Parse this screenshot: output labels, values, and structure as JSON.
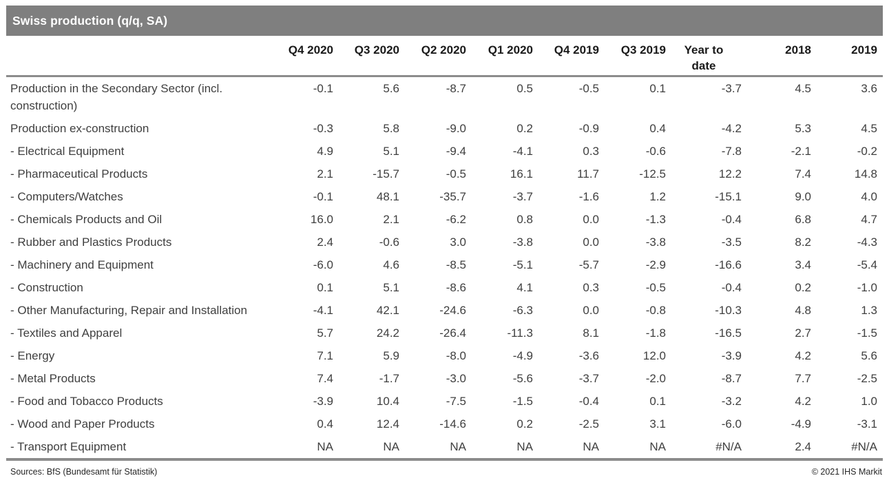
{
  "title": "Swiss production (q/q, SA)",
  "footer": {
    "sources": "Sources: BfS (Bundesamt für Statistik)",
    "copyright": "© 2021 IHS Markit"
  },
  "colors": {
    "title_bar_bg": "#7f7f7f",
    "title_text": "#ffffff",
    "rule_grey": "#8c8c8c",
    "column_header_text": "#1a1a1a",
    "body_text": "#3f3f3f"
  },
  "chart_data": {
    "type": "table",
    "title": "Swiss production (q/q, SA)",
    "columns": [
      "Q4 2020",
      "Q3 2020",
      "Q2 2020",
      "Q1 2020",
      "Q4 2019",
      "Q3 2019",
      "Year to date",
      "2018",
      "2019"
    ],
    "rows": [
      {
        "label": "Production in the Secondary Sector (incl. construction)",
        "values": [
          "-0.1",
          "5.6",
          "-8.7",
          "0.5",
          "-0.5",
          "0.1",
          "-3.7",
          "4.5",
          "3.6"
        ]
      },
      {
        "label": "Production ex-construction",
        "values": [
          "-0.3",
          "5.8",
          "-9.0",
          "0.2",
          "-0.9",
          "0.4",
          "-4.2",
          "5.3",
          "4.5"
        ]
      },
      {
        "label": "- Electrical Equipment",
        "values": [
          "4.9",
          "5.1",
          "-9.4",
          "-4.1",
          "0.3",
          "-0.6",
          "-7.8",
          "-2.1",
          "-0.2"
        ]
      },
      {
        "label": "- Pharmaceutical Products",
        "values": [
          "2.1",
          "-15.7",
          "-0.5",
          "16.1",
          "11.7",
          "-12.5",
          "12.2",
          "7.4",
          "14.8"
        ]
      },
      {
        "label": "- Computers/Watches",
        "values": [
          "-0.1",
          "48.1",
          "-35.7",
          "-3.7",
          "-1.6",
          "1.2",
          "-15.1",
          "9.0",
          "4.0"
        ]
      },
      {
        "label": "- Chemicals Products and Oil",
        "values": [
          "16.0",
          "2.1",
          "-6.2",
          "0.8",
          "0.0",
          "-1.3",
          "-0.4",
          "6.8",
          "4.7"
        ]
      },
      {
        "label": "- Rubber and Plastics Products",
        "values": [
          "2.4",
          "-0.6",
          "3.0",
          "-3.8",
          "0.0",
          "-3.8",
          "-3.5",
          "8.2",
          "-4.3"
        ]
      },
      {
        "label": "- Machinery and Equipment",
        "values": [
          "-6.0",
          "4.6",
          "-8.5",
          "-5.1",
          "-5.7",
          "-2.9",
          "-16.6",
          "3.4",
          "-5.4"
        ]
      },
      {
        "label": "- Construction",
        "values": [
          "0.1",
          "5.1",
          "-8.6",
          "4.1",
          "0.3",
          "-0.5",
          "-0.4",
          "0.2",
          "-1.0"
        ]
      },
      {
        "label": "- Other Manufacturing, Repair and Installation",
        "values": [
          "-4.1",
          "42.1",
          "-24.6",
          "-6.3",
          "0.0",
          "-0.8",
          "-10.3",
          "4.8",
          "1.3"
        ]
      },
      {
        "label": "- Textiles and Apparel",
        "values": [
          "5.7",
          "24.2",
          "-26.4",
          "-11.3",
          "8.1",
          "-1.8",
          "-16.5",
          "2.7",
          "-1.5"
        ]
      },
      {
        "label": "- Energy",
        "values": [
          "7.1",
          "5.9",
          "-8.0",
          "-4.9",
          "-3.6",
          "12.0",
          "-3.9",
          "4.2",
          "5.6"
        ]
      },
      {
        "label": "- Metal Products",
        "values": [
          "7.4",
          "-1.7",
          "-3.0",
          "-5.6",
          "-3.7",
          "-2.0",
          "-8.7",
          "7.7",
          "-2.5"
        ]
      },
      {
        "label": "- Food and Tobacco Products",
        "values": [
          "-3.9",
          "10.4",
          "-7.5",
          "-1.5",
          "-0.4",
          "0.1",
          "-3.2",
          "4.2",
          "1.0"
        ]
      },
      {
        "label": "- Wood and Paper Products",
        "values": [
          "0.4",
          "12.4",
          "-14.6",
          "0.2",
          "-2.5",
          "3.1",
          "-6.0",
          "-4.9",
          "-3.1"
        ]
      },
      {
        "label": "- Transport Equipment",
        "values": [
          "NA",
          "NA",
          "NA",
          "NA",
          "NA",
          "NA",
          "#N/A",
          "2.4",
          "#N/A"
        ]
      }
    ],
    "layout": {
      "label_column_align": "left",
      "value_columns_align": "right",
      "year_to_date_header_align": "center",
      "grid": "off",
      "rules": [
        "below-column-headers",
        "below-last-row"
      ]
    }
  }
}
